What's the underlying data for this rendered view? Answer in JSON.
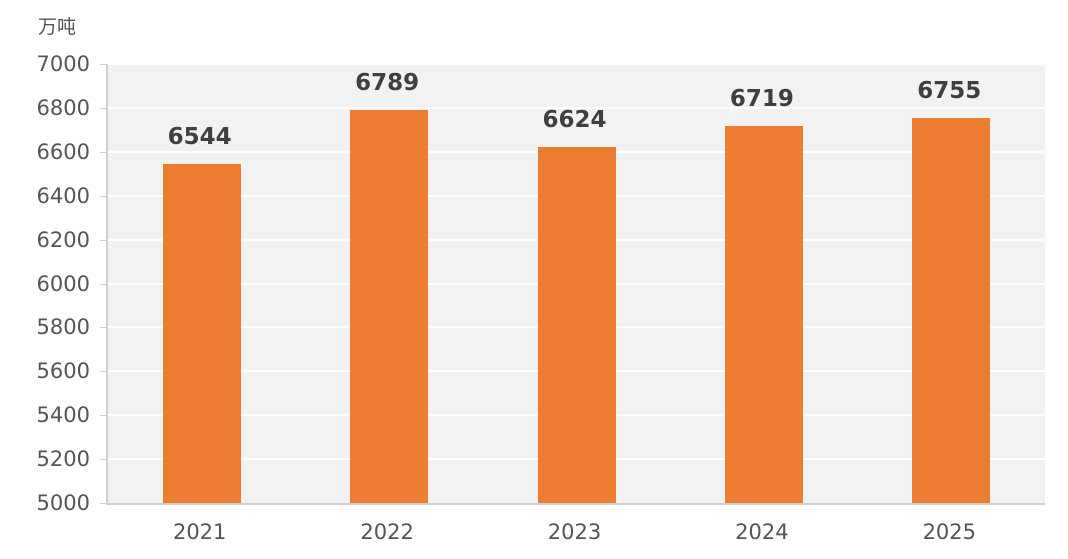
{
  "chart_data": {
    "type": "bar",
    "title": "",
    "unit_label": "万吨",
    "xlabel": "",
    "ylabel": "万吨",
    "categories": [
      "2021",
      "2022",
      "2023",
      "2024",
      "2025"
    ],
    "values": [
      6544,
      6789,
      6624,
      6719,
      6755
    ],
    "ylim": [
      5000,
      7000
    ],
    "yticks": [
      5000,
      5200,
      5400,
      5600,
      5800,
      6000,
      6200,
      6400,
      6600,
      6800,
      7000
    ],
    "grid": true,
    "legend": null,
    "bar_color": "#ed7d31",
    "background_color": "#f2f2f2"
  }
}
